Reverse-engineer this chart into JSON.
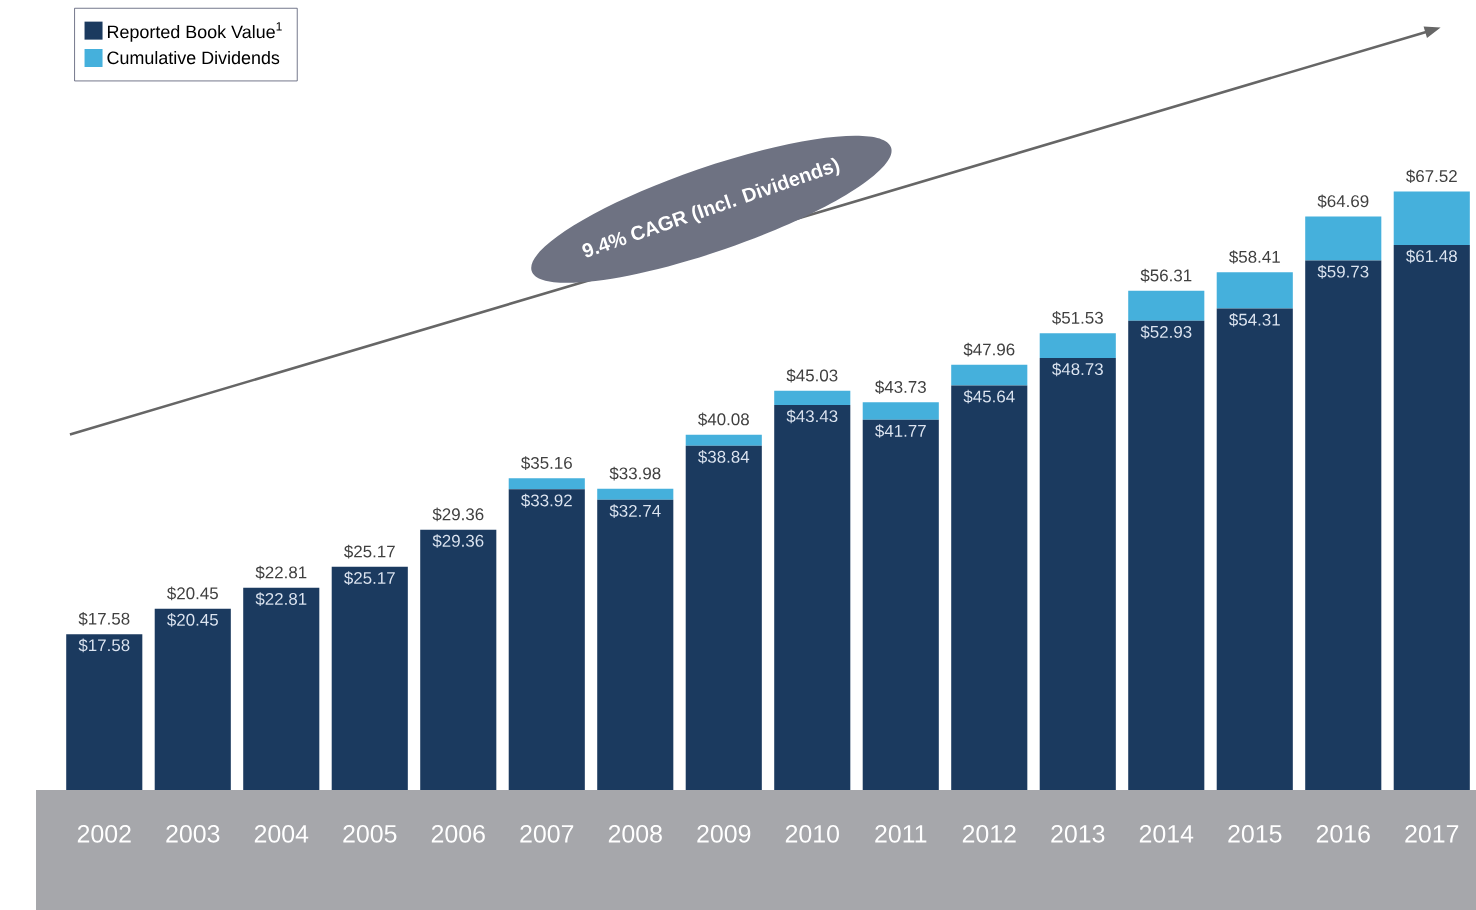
{
  "chart_data": {
    "type": "bar",
    "stacked": true,
    "categories": [
      "2002",
      "2003",
      "2004",
      "2005",
      "2006",
      "2007",
      "2008",
      "2009",
      "2010",
      "2011",
      "2012",
      "2013",
      "2014",
      "2015",
      "2016",
      "2017"
    ],
    "series": [
      {
        "name": "Reported Book Value$^{1}$",
        "color": "#1b3a5f",
        "values": [
          17.58,
          20.45,
          22.81,
          25.17,
          29.36,
          33.92,
          32.74,
          38.84,
          43.43,
          41.77,
          45.64,
          48.73,
          52.93,
          54.31,
          59.73,
          61.48
        ],
        "value_labels": [
          "$17.58",
          "$20.45",
          "$22.81",
          "$25.17",
          "$29.36",
          "$33.92",
          "$32.74",
          "$38.84",
          "$43.43",
          "$41.77",
          "$45.64",
          "$48.73",
          "$52.93",
          "$54.31",
          "$59.73",
          "$61.48"
        ]
      },
      {
        "name": "Cumulative Dividends",
        "color": "#45b0dc",
        "values": [
          0,
          0,
          0,
          0,
          0,
          1.24,
          1.24,
          1.24,
          1.6,
          1.96,
          2.32,
          2.8,
          3.38,
          4.1,
          4.96,
          6.04
        ]
      }
    ],
    "totals": [
      "$17.58",
      "$20.45",
      "$22.81",
      "$25.17",
      "$29.36",
      "$35.16",
      "$33.98",
      "$40.08",
      "$45.03",
      "$43.73",
      "$47.96",
      "$51.53",
      "$56.31",
      "$58.41",
      "$64.69",
      "$67.52"
    ],
    "annotations": [
      "9.4% CAGR (Incl. Dividends)"
    ],
    "legend": "top left"
  }
}
